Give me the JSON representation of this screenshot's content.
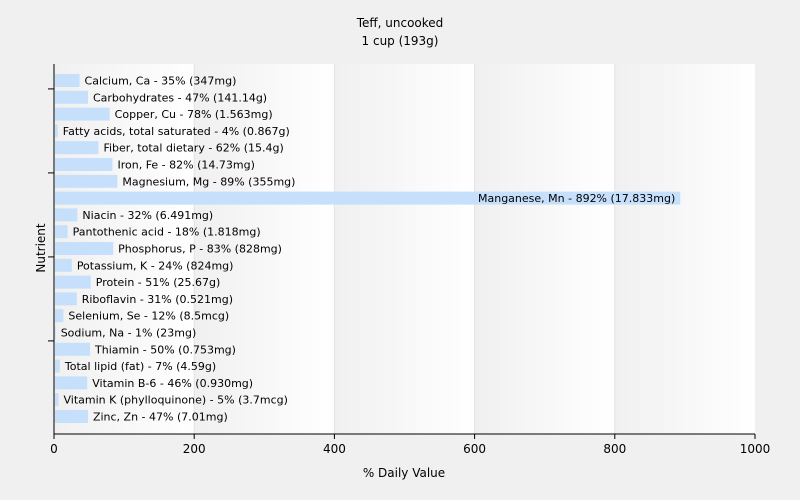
{
  "chart_data": {
    "type": "bar",
    "orientation": "horizontal",
    "title": "Teff, uncooked",
    "subtitle": "1 cup (193g)",
    "xlabel": "% Daily Value",
    "ylabel": "Nutrient",
    "xlim": [
      0,
      1000
    ],
    "xticks": [
      0,
      200,
      400,
      600,
      800,
      1000
    ],
    "grid": "vertical gradient bands",
    "bar_color": "#c6e0fb",
    "categories": [
      "Calcium, Ca - 35% (347mg)",
      "Carbohydrates - 47% (141.14g)",
      "Copper, Cu - 78% (1.563mg)",
      "Fatty acids, total saturated - 4% (0.867g)",
      "Fiber, total dietary - 62% (15.4g)",
      "Iron, Fe - 82% (14.73mg)",
      "Magnesium, Mg - 89% (355mg)",
      "Manganese, Mn - 892% (17.833mg)",
      "Niacin - 32% (6.491mg)",
      "Pantothenic acid - 18% (1.818mg)",
      "Phosphorus, P - 83% (828mg)",
      "Potassium, K - 24% (824mg)",
      "Protein - 51% (25.67g)",
      "Riboflavin - 31% (0.521mg)",
      "Selenium, Se - 12% (8.5mcg)",
      "Sodium, Na - 1% (23mg)",
      "Thiamin - 50% (0.753mg)",
      "Total lipid (fat) - 7% (4.59g)",
      "Vitamin B-6 - 46% (0.930mg)",
      "Vitamin K (phylloquinone) - 5% (3.7mcg)",
      "Zinc, Zn - 47% (7.01mg)"
    ],
    "values": [
      35,
      47,
      78,
      4,
      62,
      82,
      89,
      892,
      32,
      18,
      83,
      24,
      51,
      31,
      12,
      1,
      50,
      7,
      46,
      5,
      47
    ]
  }
}
